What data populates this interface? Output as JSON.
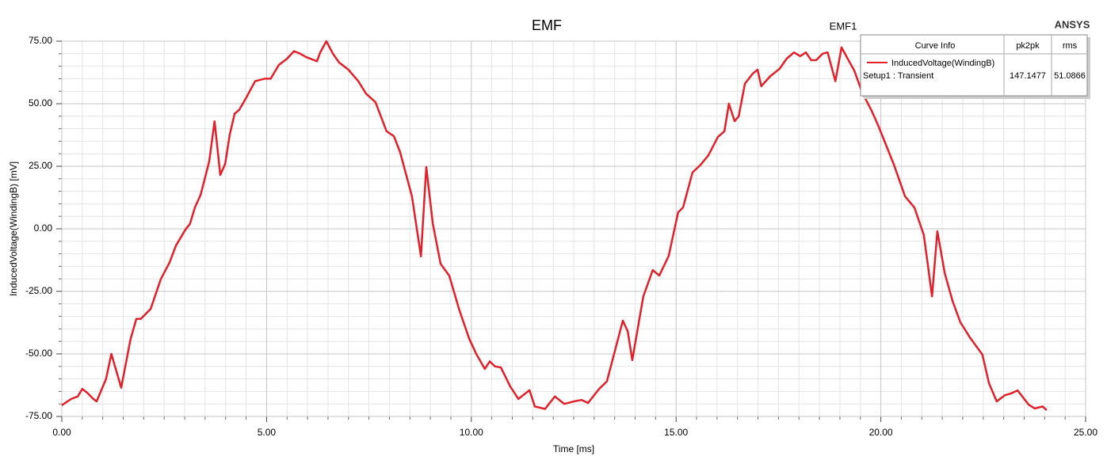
{
  "chart_data": {
    "type": "line",
    "title": "EMF",
    "plot_name": "EMF1",
    "brand": "ANSYS",
    "x_label": "Time [ms]",
    "y_label": "InducedVoltage(WindingB) [mV]",
    "xlim": [
      0,
      25
    ],
    "ylim": [
      -75,
      75
    ],
    "xticks": [
      {
        "value": 0,
        "label": "0.00"
      },
      {
        "value": 5,
        "label": "5.00"
      },
      {
        "value": 10,
        "label": "10.00"
      },
      {
        "value": 15,
        "label": "15.00"
      },
      {
        "value": 20,
        "label": "20.00"
      },
      {
        "value": 25,
        "label": "25.00"
      }
    ],
    "yticks": [
      {
        "value": -75,
        "label": "-75.00"
      },
      {
        "value": -50,
        "label": "-50.00"
      },
      {
        "value": -25,
        "label": "-25.00"
      },
      {
        "value": 0,
        "label": "0.00"
      },
      {
        "value": 25,
        "label": "25.00"
      },
      {
        "value": 50,
        "label": "50.00"
      },
      {
        "value": 75,
        "label": "75.00"
      }
    ],
    "grid": true,
    "legend": {
      "header": [
        "Curve Info",
        "pk2pk",
        "rms"
      ],
      "setup": "Setup1 : Transient",
      "pk2pk": "147.1477",
      "rms": "51.0866"
    },
    "x": [
      0,
      0.23,
      0.39,
      0.5,
      0.62,
      0.77,
      0.85,
      1.08,
      1.21,
      1.45,
      1.68,
      1.82,
      1.93,
      2.17,
      2.42,
      2.63,
      2.79,
      3.02,
      3.13,
      3.25,
      3.39,
      3.6,
      3.73,
      3.87,
      3.99,
      4.1,
      4.22,
      4.33,
      4.49,
      4.72,
      4.95,
      5.1,
      5.3,
      5.5,
      5.67,
      5.82,
      5.96,
      6.23,
      6.31,
      6.46,
      6.62,
      6.77,
      7.0,
      7.24,
      7.43,
      7.66,
      7.93,
      8.11,
      8.26,
      8.55,
      8.77,
      8.9,
      9.06,
      9.25,
      9.46,
      9.71,
      9.95,
      10.12,
      10.33,
      10.45,
      10.58,
      10.72,
      10.95,
      11.15,
      11.42,
      11.55,
      11.8,
      12.04,
      12.27,
      12.5,
      12.69,
      12.85,
      13.12,
      13.31,
      13.7,
      13.82,
      13.93,
      14.2,
      14.43,
      14.59,
      14.82,
      15.05,
      15.17,
      15.4,
      15.6,
      15.79,
      16.02,
      16.18,
      16.29,
      16.43,
      16.53,
      16.68,
      16.87,
      16.99,
      17.08,
      17.3,
      17.53,
      17.7,
      17.88,
      18.03,
      18.17,
      18.3,
      18.42,
      18.58,
      18.7,
      18.89,
      19.04,
      19.2,
      19.35,
      19.54,
      19.78,
      19.93,
      20.09,
      20.32,
      20.59,
      20.82,
      21.05,
      21.25,
      21.38,
      21.56,
      21.75,
      21.94,
      22.17,
      22.48,
      22.64,
      22.83,
      23.03,
      23.18,
      23.34,
      23.61,
      23.76,
      23.95,
      24.05
    ],
    "series": [
      {
        "name": "InducedVoltage(WindingB)",
        "color": "#e0202a",
        "values": [
          -70.5,
          -68,
          -67,
          -64,
          -65.5,
          -68,
          -69,
          -60,
          -50,
          -63.5,
          -44,
          -36,
          -36,
          -32,
          -20,
          -13.5,
          -6.6,
          -0.3,
          2,
          8.5,
          13.6,
          27,
          43,
          21.5,
          26,
          37.6,
          46,
          47.5,
          52,
          59,
          60,
          60,
          65.5,
          68,
          71,
          70,
          68.7,
          67,
          70.5,
          75,
          70,
          66.5,
          63.6,
          59,
          54,
          50.6,
          39,
          37,
          30.7,
          13,
          -11,
          24.7,
          2,
          -14,
          -18.7,
          -32.6,
          -44,
          -50,
          -56,
          -53,
          -55,
          -55.4,
          -63,
          -68,
          -64.5,
          -71,
          -72,
          -67,
          -70,
          -69,
          -68.4,
          -69.6,
          -64,
          -61,
          -36.7,
          -41,
          -52.5,
          -27,
          -16.5,
          -18.7,
          -10.8,
          6.6,
          8.5,
          22.5,
          25.6,
          29.4,
          36.7,
          39,
          50,
          43,
          45,
          58,
          62,
          63.6,
          57,
          61,
          64,
          68,
          70.5,
          69,
          70.5,
          67.4,
          67.4,
          70,
          70.5,
          59,
          72.5,
          67.7,
          63.3,
          54.7,
          47,
          41.5,
          35,
          25.6,
          13,
          8.5,
          -2.5,
          -27,
          -1,
          -17.7,
          -28.8,
          -37.3,
          -43.3,
          -50.3,
          -61.7,
          -69,
          -66.5,
          -65.8,
          -64.6,
          -70.3,
          -71.8,
          -71,
          -72.5
        ]
      }
    ]
  }
}
